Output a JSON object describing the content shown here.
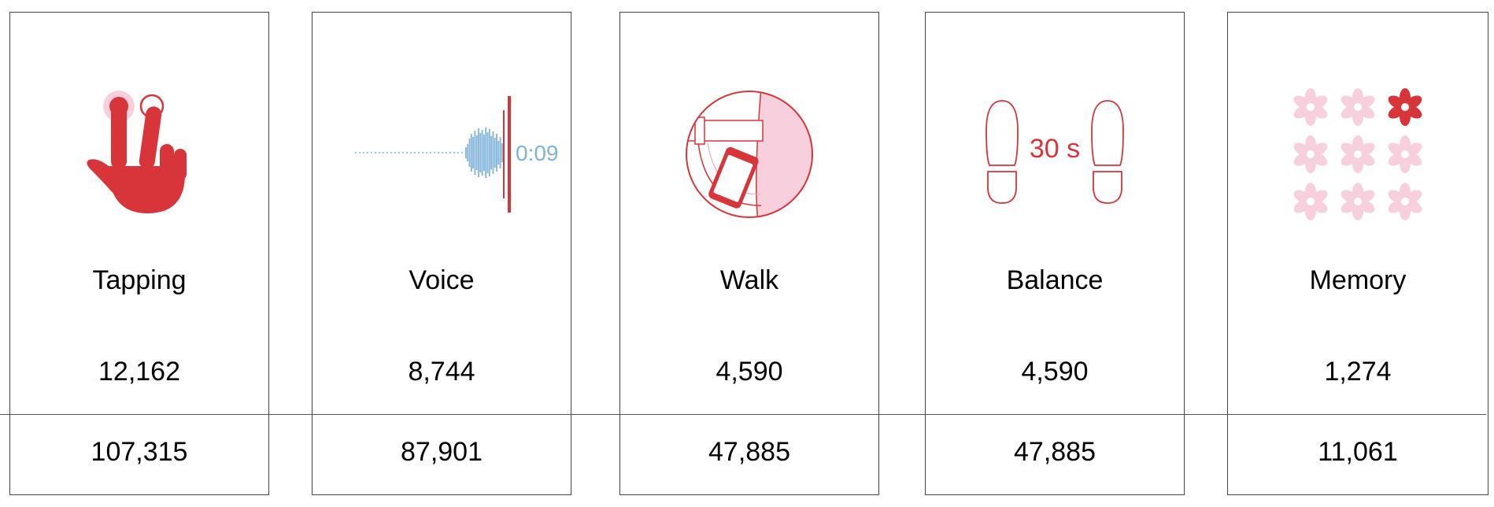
{
  "colors": {
    "accent_red": "#d7353a",
    "light_pink": "#f7cfdd",
    "waveform_blue": "#7fb3d9"
  },
  "cards": [
    {
      "icon": "tapping-hand-icon",
      "label": "Tapping",
      "count_top": "12,162",
      "count_bottom": "107,315"
    },
    {
      "icon": "voice-waveform-icon",
      "label": "Voice",
      "count_top": "8,744",
      "count_bottom": "87,901",
      "timer_text": "0:09"
    },
    {
      "icon": "walk-phone-pocket-icon",
      "label": "Walk",
      "count_top": "4,590",
      "count_bottom": "47,885"
    },
    {
      "icon": "balance-footprints-icon",
      "label": "Balance",
      "count_top": "4,590",
      "count_bottom": "47,885",
      "duration_text": "30 s"
    },
    {
      "icon": "memory-flower-grid-icon",
      "label": "Memory",
      "count_top": "1,274",
      "count_bottom": "11,061"
    }
  ]
}
